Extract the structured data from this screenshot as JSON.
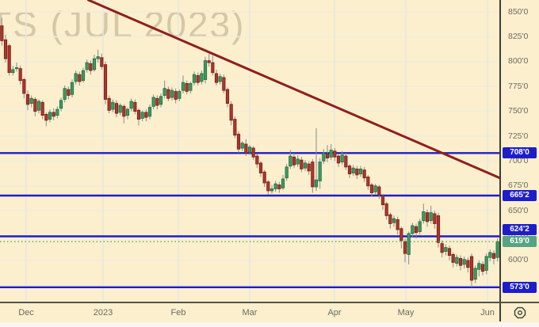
{
  "chart_data": {
    "type": "candlestick",
    "watermark": "TS (JUL 2023)",
    "ylim": [
      558.5,
      862
    ],
    "y_ticks": [
      {
        "value": 850,
        "label": "850'0"
      },
      {
        "value": 825,
        "label": "825'0"
      },
      {
        "value": 800,
        "label": "800'0"
      },
      {
        "value": 775,
        "label": "775'0"
      },
      {
        "value": 750,
        "label": "750'0"
      },
      {
        "value": 725,
        "label": "725'0"
      },
      {
        "value": 700,
        "label": "700'0"
      },
      {
        "value": 675,
        "label": "675'0"
      },
      {
        "value": 650,
        "label": "650'0"
      },
      {
        "value": 625,
        "label": "625'0"
      },
      {
        "value": 600,
        "label": "600'0"
      },
      {
        "value": 575,
        "label": "575'0"
      }
    ],
    "x_ticks": [
      {
        "label": "Dec",
        "x": 33
      },
      {
        "label": "2023",
        "x": 130
      },
      {
        "label": "Feb",
        "x": 225
      },
      {
        "label": "Mar",
        "x": 315
      },
      {
        "label": "Apr",
        "x": 422
      },
      {
        "label": "May",
        "x": 512
      },
      {
        "label": "Jun",
        "x": 615
      }
    ],
    "price_lines": [
      {
        "price": 708.0,
        "label": "708'0"
      },
      {
        "price": 665.25,
        "label": "665'2"
      },
      {
        "price": 624.25,
        "label": "624'2"
      },
      {
        "price": 573.0,
        "label": "573'0"
      }
    ],
    "last_price": {
      "price": 619.0,
      "label": "619'0"
    },
    "trendline": {
      "i1": 23.4,
      "p1": 862,
      "i2": 134.6,
      "p2": 683
    },
    "colors": {
      "background": "#fbefcd",
      "grid_h": "#f2ecdd",
      "grid_v": "#e8e6e2",
      "up": "#3d9b63",
      "up_border": "#1e6b3f",
      "down": "#ab372c",
      "down_border": "#7a1d17",
      "wick": "#8a8a85",
      "level_line": "#1d1dcc",
      "trend": "#8e1f1f",
      "last_line": "#4a9f6e",
      "tag_blue": "#1d1dcc",
      "tag_green": "#55a483"
    },
    "ohlc": [
      [
        836,
        844,
        816,
        821
      ],
      [
        822,
        827,
        799,
        803
      ],
      [
        816,
        818,
        786,
        789
      ],
      [
        789,
        796,
        786,
        792
      ],
      [
        793,
        799,
        790,
        794
      ],
      [
        793,
        796,
        777,
        781
      ],
      [
        782,
        784,
        763,
        768
      ],
      [
        767,
        771,
        751,
        757
      ],
      [
        758,
        766,
        754,
        763
      ],
      [
        762,
        764,
        745,
        750
      ],
      [
        751,
        762,
        748,
        760
      ],
      [
        759,
        761,
        742,
        746
      ],
      [
        747,
        749,
        735,
        741
      ],
      [
        742,
        752,
        739,
        749
      ],
      [
        749,
        753,
        741,
        745
      ],
      [
        746,
        755,
        743,
        752
      ],
      [
        753,
        764,
        750,
        761
      ],
      [
        762,
        776,
        759,
        773
      ],
      [
        772,
        775,
        762,
        766
      ],
      [
        767,
        782,
        764,
        779
      ],
      [
        780,
        791,
        777,
        788
      ],
      [
        787,
        790,
        776,
        780
      ],
      [
        781,
        794,
        779,
        791
      ],
      [
        792,
        802,
        789,
        799
      ],
      [
        798,
        801,
        787,
        791
      ],
      [
        792,
        807,
        790,
        803
      ],
      [
        803,
        812,
        799,
        805
      ],
      [
        804,
        808,
        792,
        795
      ],
      [
        797,
        800,
        757,
        762
      ],
      [
        763,
        766,
        748,
        751
      ],
      [
        752,
        762,
        749,
        759
      ],
      [
        758,
        761,
        744,
        748
      ],
      [
        749,
        758,
        746,
        756
      ],
      [
        755,
        757,
        738,
        745
      ],
      [
        746,
        754,
        742,
        752
      ],
      [
        753,
        763,
        750,
        760
      ],
      [
        759,
        762,
        747,
        750
      ],
      [
        751,
        753,
        736,
        742
      ],
      [
        743,
        751,
        740,
        749
      ],
      [
        749,
        752,
        740,
        744
      ],
      [
        745,
        757,
        742,
        754
      ],
      [
        755,
        767,
        752,
        764
      ],
      [
        763,
        766,
        752,
        756
      ],
      [
        757,
        768,
        754,
        765
      ],
      [
        766,
        781,
        763,
        773
      ],
      [
        772,
        775,
        760,
        763
      ],
      [
        764,
        774,
        761,
        771
      ],
      [
        770,
        773,
        758,
        762
      ],
      [
        763,
        772,
        760,
        770
      ],
      [
        771,
        786,
        768,
        779
      ],
      [
        778,
        781,
        767,
        770
      ],
      [
        771,
        780,
        768,
        778
      ],
      [
        779,
        790,
        776,
        787
      ],
      [
        786,
        789,
        776,
        779
      ],
      [
        780,
        791,
        777,
        788
      ],
      [
        782,
        805,
        778,
        801
      ],
      [
        801,
        808,
        795,
        799
      ],
      [
        799,
        806,
        786,
        789
      ],
      [
        788,
        792,
        776,
        779
      ],
      [
        780,
        788,
        777,
        785
      ],
      [
        784,
        787,
        768,
        771
      ],
      [
        772,
        774,
        754,
        758
      ],
      [
        757,
        760,
        736,
        741
      ],
      [
        742,
        745,
        723,
        726
      ],
      [
        727,
        730,
        708,
        712
      ],
      [
        713,
        720,
        710,
        718
      ],
      [
        717,
        722,
        705,
        708
      ],
      [
        709,
        716,
        706,
        714
      ],
      [
        713,
        715,
        701,
        704
      ],
      [
        705,
        707,
        693,
        697
      ],
      [
        698,
        700,
        684,
        688
      ],
      [
        689,
        691,
        674,
        678
      ],
      [
        679,
        681,
        666,
        670
      ],
      [
        670,
        676,
        667,
        672
      ],
      [
        672,
        680,
        669,
        677
      ],
      [
        676,
        679,
        668,
        672
      ],
      [
        673,
        686,
        671,
        682
      ],
      [
        683,
        697,
        680,
        694
      ],
      [
        695,
        711,
        692,
        705
      ],
      [
        704,
        708,
        693,
        696
      ],
      [
        697,
        706,
        694,
        702
      ],
      [
        701,
        704,
        689,
        692
      ],
      [
        693,
        701,
        690,
        698
      ],
      [
        697,
        700,
        686,
        690
      ],
      [
        699,
        702,
        668,
        674
      ],
      [
        674,
        733,
        670,
        681
      ],
      [
        680,
        703,
        672,
        699
      ],
      [
        700,
        712,
        697,
        708
      ],
      [
        707,
        716,
        699,
        703
      ],
      [
        704,
        717,
        701,
        711
      ],
      [
        710,
        713,
        700,
        704
      ],
      [
        705,
        707,
        694,
        698
      ],
      [
        699,
        710,
        696,
        706
      ],
      [
        705,
        708,
        691,
        694
      ],
      [
        695,
        697,
        683,
        687
      ],
      [
        688,
        696,
        685,
        693
      ],
      [
        692,
        695,
        682,
        686
      ],
      [
        687,
        695,
        684,
        692
      ],
      [
        691,
        694,
        679,
        683
      ],
      [
        684,
        686,
        671,
        675
      ],
      [
        676,
        678,
        664,
        668
      ],
      [
        669,
        677,
        666,
        675
      ],
      [
        674,
        676,
        662,
        666
      ],
      [
        665,
        667,
        651,
        656
      ],
      [
        657,
        659,
        641,
        645
      ],
      [
        646,
        648,
        632,
        637
      ],
      [
        638,
        645,
        634,
        642
      ],
      [
        641,
        644,
        626,
        631
      ],
      [
        632,
        634,
        612,
        620
      ],
      [
        619,
        622,
        598,
        607
      ],
      [
        606,
        629,
        596,
        627
      ],
      [
        627,
        638,
        623,
        635
      ],
      [
        634,
        637,
        622,
        628
      ],
      [
        629,
        642,
        626,
        639
      ],
      [
        640,
        657,
        637,
        649
      ],
      [
        648,
        651,
        634,
        639
      ],
      [
        640,
        655,
        637,
        648
      ],
      [
        647,
        650,
        632,
        637
      ],
      [
        645,
        648,
        613,
        618
      ],
      [
        617,
        620,
        603,
        608
      ],
      [
        609,
        616,
        605,
        613
      ],
      [
        612,
        615,
        600,
        605
      ],
      [
        606,
        608,
        593,
        598
      ],
      [
        597,
        606,
        594,
        603
      ],
      [
        602,
        605,
        590,
        595
      ],
      [
        596,
        604,
        592,
        601
      ],
      [
        600,
        603,
        588,
        593
      ],
      [
        604,
        607,
        573,
        580
      ],
      [
        581,
        595,
        577,
        592
      ],
      [
        591,
        600,
        584,
        597
      ],
      [
        596,
        599,
        585,
        589
      ],
      [
        590,
        607,
        586,
        604
      ],
      [
        603,
        611,
        599,
        608
      ],
      [
        607,
        610,
        596,
        602
      ],
      [
        603,
        622,
        599,
        619
      ]
    ]
  },
  "ui": {
    "corner_icon": "gear-icon"
  }
}
